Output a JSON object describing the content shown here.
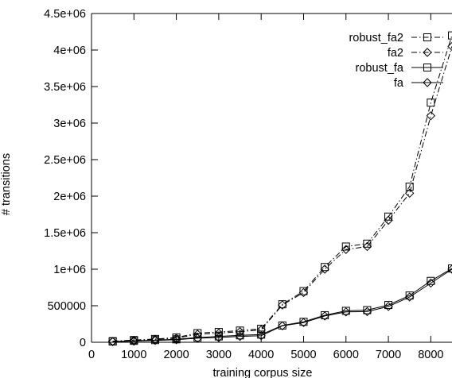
{
  "chart_data": {
    "type": "line",
    "title": "",
    "xlabel": "training corpus size",
    "ylabel": "# transitions",
    "xlim": [
      0,
      8500
    ],
    "ylim": [
      0,
      4500000
    ],
    "x_ticks": [
      0,
      1000,
      2000,
      3000,
      4000,
      5000,
      6000,
      7000,
      8000
    ],
    "x_tick_labels": [
      "0",
      "1000",
      "2000",
      "3000",
      "4000",
      "5000",
      "6000",
      "7000",
      "8000"
    ],
    "y_ticks": [
      0,
      500000,
      1000000,
      1500000,
      2000000,
      2500000,
      3000000,
      3500000,
      4000000,
      4500000
    ],
    "y_tick_labels": [
      "0",
      "500000",
      "1e+06",
      "1.5e+06",
      "2e+06",
      "2.5e+06",
      "3e+06",
      "3.5e+06",
      "4e+06",
      "4.5e+06"
    ],
    "grid": false,
    "legend_position": "top-right",
    "x": [
      500,
      1000,
      1500,
      2000,
      2500,
      3000,
      3500,
      4000,
      4500,
      5000,
      5500,
      6000,
      6500,
      7000,
      7500,
      8000,
      8500
    ],
    "series": [
      {
        "name": "robust_fa2",
        "marker": "square",
        "line": "dash-dot",
        "values": [
          15000,
          30000,
          45000,
          65000,
          125000,
          140000,
          160000,
          185000,
          520000,
          700000,
          1030000,
          1310000,
          1350000,
          1720000,
          2130000,
          3280000,
          4200000
        ]
      },
      {
        "name": "fa2",
        "marker": "diamond",
        "line": "dash-dot",
        "values": [
          12000,
          25000,
          40000,
          55000,
          110000,
          125000,
          145000,
          170000,
          510000,
          680000,
          1000000,
          1270000,
          1310000,
          1670000,
          2040000,
          3100000,
          4050000
        ]
      },
      {
        "name": "robust_fa",
        "marker": "square",
        "line": "solid",
        "values": [
          10000,
          20000,
          30000,
          40000,
          65000,
          80000,
          95000,
          105000,
          230000,
          280000,
          370000,
          430000,
          440000,
          510000,
          640000,
          840000,
          1010000
        ]
      },
      {
        "name": "fa",
        "marker": "diamond",
        "line": "solid",
        "values": [
          8000,
          15000,
          25000,
          35000,
          55000,
          65000,
          80000,
          90000,
          225000,
          270000,
          360000,
          415000,
          420000,
          490000,
          620000,
          810000,
          1000000
        ]
      }
    ]
  }
}
